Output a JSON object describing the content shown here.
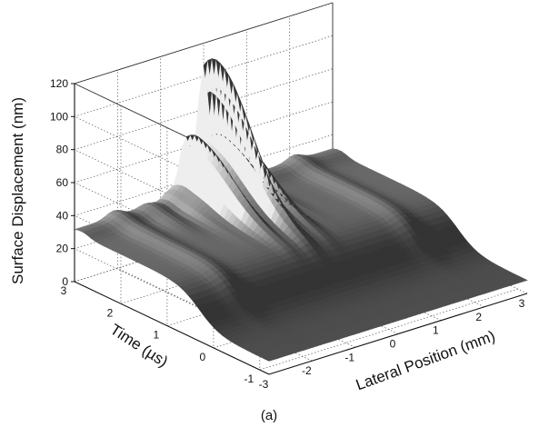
{
  "chart_data": {
    "type": "surface",
    "zlabel": "Surface Displacement (nm)",
    "ylabel": "Time (µs)",
    "xlabel": "Lateral Position (mm)",
    "panel_label": "(a)",
    "xlim": [
      -3,
      3
    ],
    "ylim": [
      -1.2,
      3
    ],
    "zlim": [
      0,
      120
    ],
    "x_ticks": [
      -3,
      -2,
      -1,
      0,
      1,
      2,
      3
    ],
    "y_ticks": [
      -1,
      0,
      1,
      2,
      3
    ],
    "z_ticks": [
      0,
      20,
      40,
      60,
      80,
      100,
      120
    ],
    "grid": true,
    "colormap": "gray",
    "colors": {
      "low": "#2a2a2a",
      "high": "#f2f2f2",
      "background": "#ffffff"
    },
    "features": {
      "baseline_level": 8,
      "plateau_level": 30,
      "step_time": 0.3,
      "peak_value": 110,
      "peak_lateral_position": 0,
      "peak_time": 2.7,
      "peak_width_mm": 0.8
    }
  }
}
